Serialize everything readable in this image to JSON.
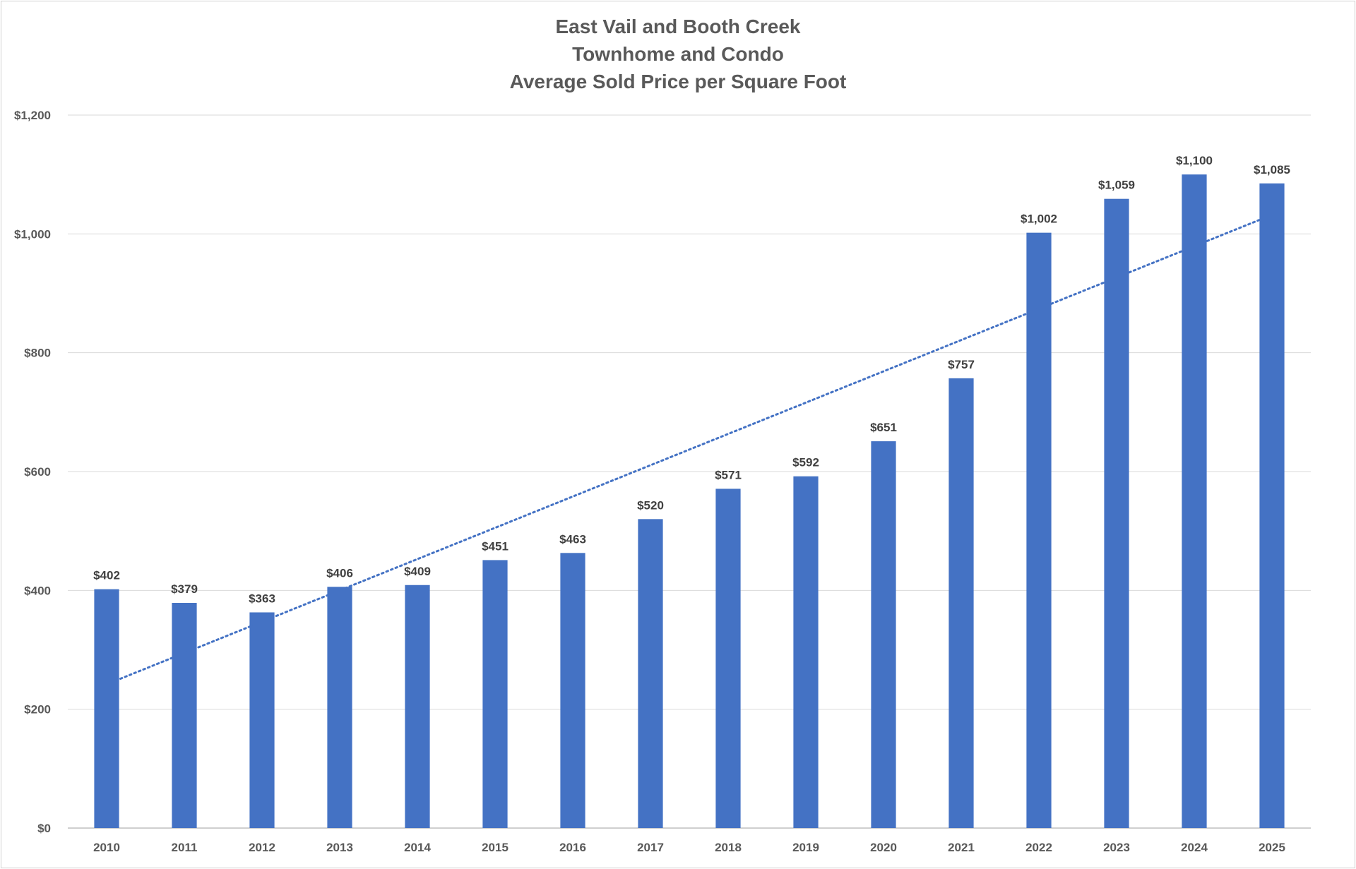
{
  "chart_data": {
    "type": "bar",
    "title_lines": [
      "East Vail and Booth Creek",
      "Townhome and Condo",
      "Average Sold Price per Square Foot"
    ],
    "categories": [
      "2010",
      "2011",
      "2012",
      "2013",
      "2014",
      "2015",
      "2016",
      "2017",
      "2018",
      "2019",
      "2020",
      "2021",
      "2022",
      "2023",
      "2024",
      "2025"
    ],
    "values": [
      402,
      379,
      363,
      406,
      409,
      451,
      463,
      520,
      571,
      592,
      651,
      757,
      1002,
      1059,
      1100,
      1085
    ],
    "data_labels": [
      "$402",
      "$379",
      "$363",
      "$406",
      "$409",
      "$451",
      "$463",
      "$520",
      "$571",
      "$592",
      "$651",
      "$757",
      "$1,002",
      "$1,059",
      "$1,100",
      "$1,085"
    ],
    "y_ticks": [
      0,
      200,
      400,
      600,
      800,
      1000,
      1200
    ],
    "y_tick_labels": [
      "$0",
      "$200",
      "$400",
      "$600",
      "$800",
      "$1,000",
      "$1,200"
    ],
    "ylim": [
      0,
      1200
    ],
    "grid": true,
    "legend": "none",
    "bar_color": "#4472C4",
    "trendline": {
      "type": "linear",
      "style": "dotted",
      "color": "#4472C4",
      "start": 242,
      "end": 1032
    }
  }
}
